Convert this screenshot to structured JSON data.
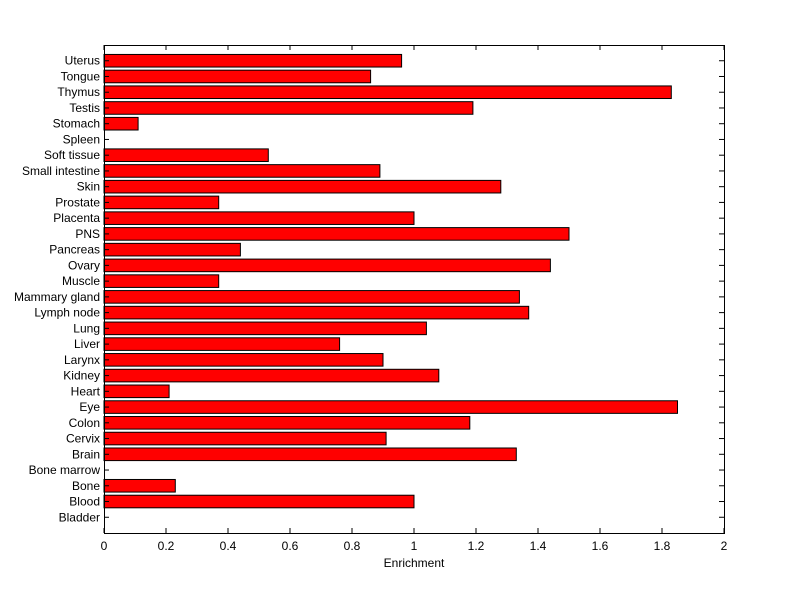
{
  "chart_data": {
    "type": "bar",
    "orientation": "horizontal",
    "categories": [
      "Bladder",
      "Blood",
      "Bone",
      "Bone marrow",
      "Brain",
      "Cervix",
      "Colon",
      "Eye",
      "Heart",
      "Kidney",
      "Larynx",
      "Liver",
      "Lung",
      "Lymph node",
      "Mammary gland",
      "Muscle",
      "Ovary",
      "Pancreas",
      "PNS",
      "Placenta",
      "Prostate",
      "Skin",
      "Small intestine",
      "Soft tissue",
      "Spleen",
      "Stomach",
      "Testis",
      "Thymus",
      "Tongue",
      "Uterus"
    ],
    "values": [
      0,
      1.0,
      0.23,
      0,
      1.33,
      0.91,
      1.18,
      1.85,
      0.21,
      1.08,
      0.9,
      0.76,
      1.04,
      1.37,
      1.34,
      0.37,
      1.44,
      0.44,
      1.5,
      1.0,
      0.37,
      1.28,
      0.89,
      0.53,
      0,
      0.11,
      1.19,
      1.83,
      0.86,
      0.96
    ],
    "xlabel": "Enrichment",
    "ylabel": "",
    "title": "",
    "xlim": [
      0,
      2
    ],
    "xticks": [
      "0",
      "0.2",
      "0.4",
      "0.6",
      "0.8",
      "1",
      "1.2",
      "1.4",
      "1.6",
      "1.8",
      "2"
    ],
    "grid": false,
    "colors": {
      "bar_fill": "#ff0000",
      "bar_edge": "#000000",
      "axis": "#000000"
    }
  }
}
